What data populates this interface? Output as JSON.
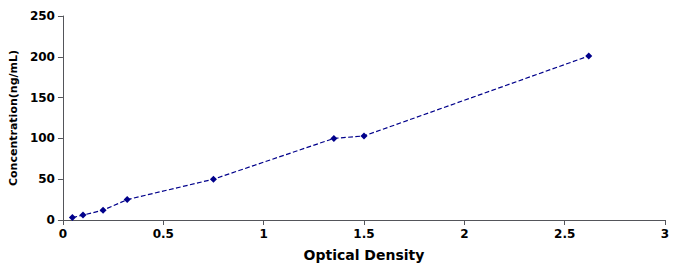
{
  "chart_data": {
    "type": "line",
    "x": [
      0.047,
      0.1,
      0.2,
      0.32,
      0.75,
      1.35,
      1.5,
      2.62
    ],
    "values": [
      3.0,
      6.0,
      12.0,
      25.0,
      50.0,
      100.0,
      103.0,
      201.0
    ],
    "xlabel": "Optical Density",
    "ylabel": "Concentration(ng/mL)",
    "xlim": [
      0,
      3
    ],
    "ylim": [
      0,
      250
    ],
    "xticks": [
      0,
      0.5,
      1,
      1.5,
      2,
      2.5,
      3
    ],
    "yticks": [
      0,
      50,
      100,
      150,
      200,
      250
    ],
    "color": "#00008B",
    "marker": "diamond",
    "line_style": "dashed",
    "grid": false
  }
}
